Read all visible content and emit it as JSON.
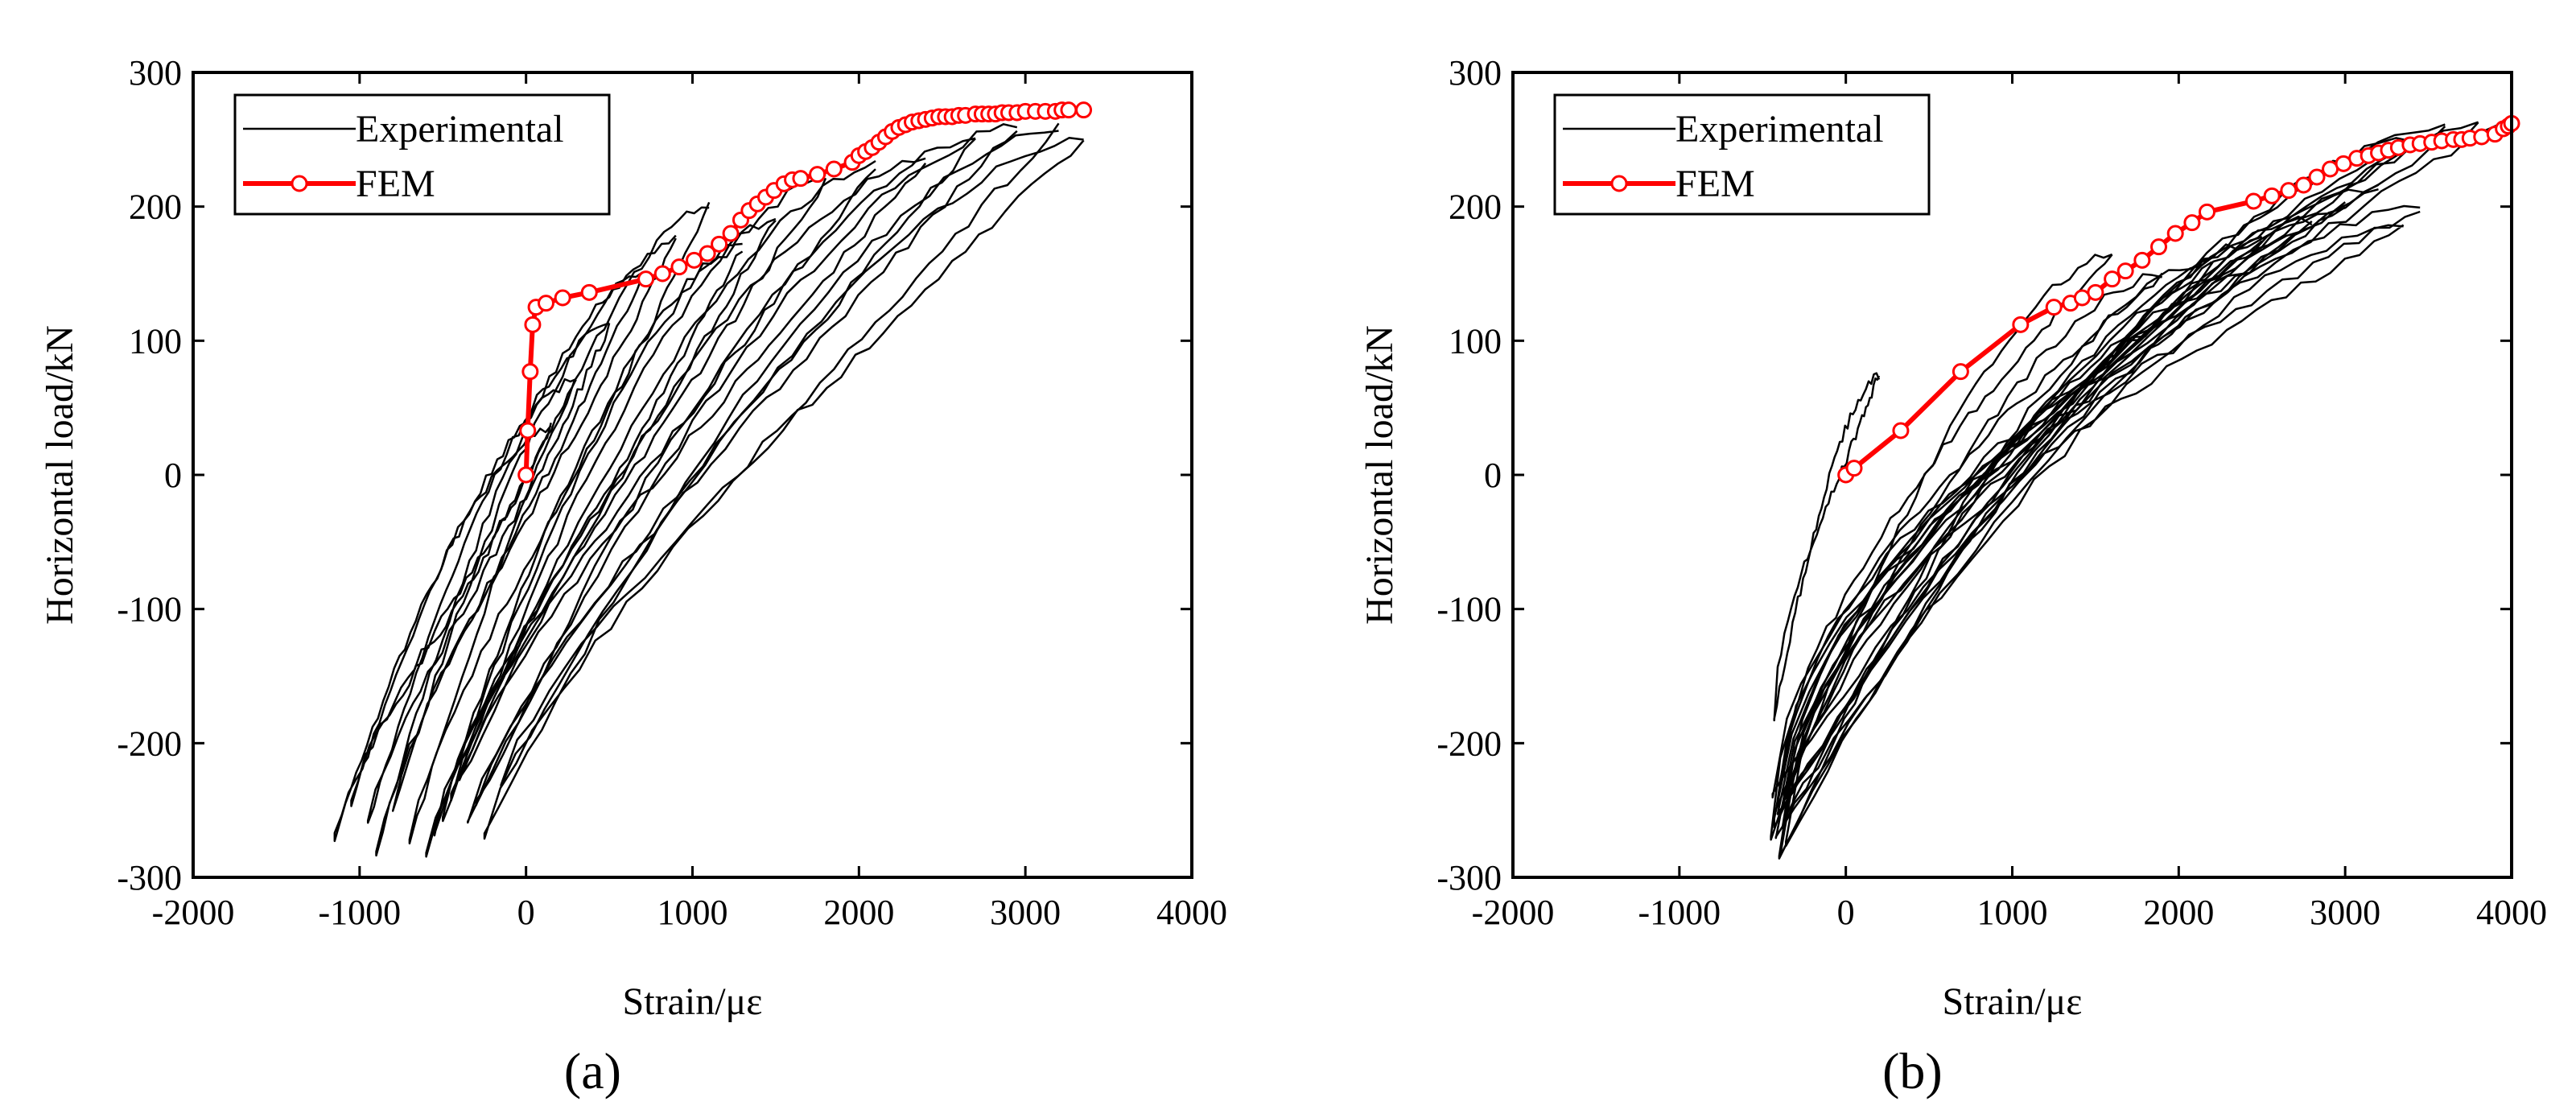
{
  "chart_data": [
    {
      "type": "line",
      "panel_label": "(a)",
      "xlabel": "Strain/με",
      "ylabel": "Horizontal load/kN",
      "xlim": [
        -2000,
        4000
      ],
      "ylim": [
        -300,
        300
      ],
      "xticks": [
        -2000,
        -1000,
        0,
        1000,
        2000,
        3000,
        4000
      ],
      "yticks": [
        -300,
        -200,
        -100,
        0,
        100,
        200,
        300
      ],
      "grid": false,
      "legend_position": "top-left",
      "series": [
        {
          "name": "Experimental",
          "color": "#000000",
          "style": "thin-line",
          "loops": [
            {
              "peak": [
                150,
                35
              ],
              "trough": [
                -1150,
                -270
              ]
            },
            {
              "peak": [
                300,
                70
              ],
              "trough": [
                -1050,
                -245
              ]
            },
            {
              "peak": [
                500,
                110
              ],
              "trough": [
                -950,
                -260
              ]
            },
            {
              "peak": [
                700,
                150
              ],
              "trough": [
                -900,
                -280
              ]
            },
            {
              "peak": [
                900,
                175
              ],
              "trough": [
                -800,
                -250
              ]
            },
            {
              "peak": [
                1100,
                200
              ],
              "trough": [
                -700,
                -275
              ]
            },
            {
              "peak": [
                1300,
                170
              ],
              "trough": [
                -600,
                -285
              ]
            },
            {
              "peak": [
                1500,
                190
              ],
              "trough": [
                -550,
                -265
              ]
            },
            {
              "peak": [
                1800,
                220
              ],
              "trough": [
                -500,
                -255
              ]
            },
            {
              "peak": [
                2100,
                230
              ],
              "trough": [
                -450,
                -240
              ]
            },
            {
              "peak": [
                2400,
                235
              ],
              "trough": [
                -400,
                -230
              ]
            },
            {
              "peak": [
                2700,
                250
              ],
              "trough": [
                -350,
                -260
              ]
            },
            {
              "peak": [
                2950,
                260
              ],
              "trough": [
                -300,
                -245
              ]
            },
            {
              "peak": [
                3200,
                260
              ],
              "trough": [
                -250,
                -270
              ]
            },
            {
              "peak": [
                3350,
                250
              ],
              "trough": [
                -150,
                -230
              ]
            }
          ]
        },
        {
          "name": "FEM",
          "color": "#ff0000",
          "style": "line-open-circles",
          "x": [
            0,
            10,
            25,
            40,
            60,
            120,
            220,
            380,
            720,
            820,
            920,
            1010,
            1090,
            1160,
            1230,
            1290,
            1340,
            1390,
            1440,
            1490,
            1550,
            1600,
            1650,
            1750,
            1850,
            1960,
            2000,
            2040,
            2080,
            2120,
            2160,
            2200,
            2240,
            2280,
            2320,
            2360,
            2400,
            2440,
            2480,
            2520,
            2560,
            2600,
            2640,
            2700,
            2740,
            2780,
            2820,
            2860,
            2900,
            2950,
            3000,
            3060,
            3120,
            3180,
            3220,
            3260,
            3350
          ],
          "y": [
            0,
            33,
            77,
            112,
            125,
            128,
            132,
            136,
            146,
            150,
            155,
            160,
            165,
            172,
            180,
            190,
            197,
            202,
            207,
            212,
            217,
            220,
            221,
            224,
            228,
            233,
            238,
            241,
            244,
            248,
            252,
            256,
            259,
            261,
            263,
            264,
            265,
            266,
            267,
            267,
            267,
            268,
            268,
            269,
            269,
            269,
            269,
            270,
            270,
            270,
            271,
            271,
            271,
            271,
            272,
            272,
            272
          ]
        }
      ]
    },
    {
      "type": "line",
      "panel_label": "(b)",
      "xlabel": "Strain/με",
      "ylabel": "Horizontal load/kN",
      "xlim": [
        -2000,
        4000
      ],
      "ylim": [
        -300,
        300
      ],
      "xticks": [
        -2000,
        -1000,
        0,
        1000,
        2000,
        3000,
        4000
      ],
      "yticks": [
        -300,
        -200,
        -100,
        0,
        100,
        200,
        300
      ],
      "grid": false,
      "legend_position": "top-left",
      "series": [
        {
          "name": "Experimental",
          "color": "#000000",
          "style": "thin-line",
          "loops": [
            {
              "peak": [
                200,
                75
              ],
              "trough": [
                -430,
                -180
              ]
            },
            {
              "peak": [
                1600,
                165
              ],
              "trough": [
                -450,
                -270
              ]
            },
            {
              "peak": [
                1900,
                150
              ],
              "trough": [
                -420,
                -250
              ]
            },
            {
              "peak": [
                2200,
                160
              ],
              "trough": [
                -400,
                -285
              ]
            },
            {
              "peak": [
                2500,
                175
              ],
              "trough": [
                -380,
                -265
              ]
            },
            {
              "peak": [
                2800,
                190
              ],
              "trough": [
                -440,
                -240
              ]
            },
            {
              "peak": [
                3000,
                200
              ],
              "trough": [
                -360,
                -275
              ]
            },
            {
              "peak": [
                3200,
                215
              ],
              "trough": [
                -410,
                -255
              ]
            },
            {
              "peak": [
                3400,
                250
              ],
              "trough": [
                -390,
                -280
              ]
            },
            {
              "peak": [
                3600,
                258
              ],
              "trough": [
                -430,
                -260
              ]
            },
            {
              "peak": [
                3800,
                260
              ],
              "trough": [
                -370,
                -245
              ]
            },
            {
              "peak": [
                3950,
                262
              ],
              "trough": [
                -420,
                -270
              ]
            },
            {
              "peak": [
                3450,
                200
              ],
              "trough": [
                -400,
                -230
              ]
            },
            {
              "peak": [
                3350,
                185
              ],
              "trough": [
                -350,
                -250
              ]
            }
          ]
        },
        {
          "name": "FEM",
          "color": "#ff0000",
          "style": "line-open-circles",
          "x": [
            0,
            50,
            330,
            690,
            1050,
            1250,
            1350,
            1420,
            1500,
            1600,
            1680,
            1780,
            1880,
            1980,
            2080,
            2170,
            2450,
            2560,
            2660,
            2750,
            2830,
            2910,
            2990,
            3070,
            3140,
            3200,
            3260,
            3320,
            3390,
            3450,
            3520,
            3580,
            3650,
            3700,
            3750,
            3820,
            3900,
            3950,
            3980,
            4000
          ],
          "y": [
            0,
            5,
            33,
            77,
            112,
            125,
            128,
            132,
            136,
            146,
            152,
            160,
            170,
            180,
            188,
            196,
            204,
            208,
            212,
            216,
            222,
            228,
            232,
            236,
            238,
            240,
            242,
            244,
            246,
            247,
            248,
            249,
            250,
            250,
            251,
            252,
            254,
            258,
            260,
            262
          ]
        }
      ]
    }
  ]
}
